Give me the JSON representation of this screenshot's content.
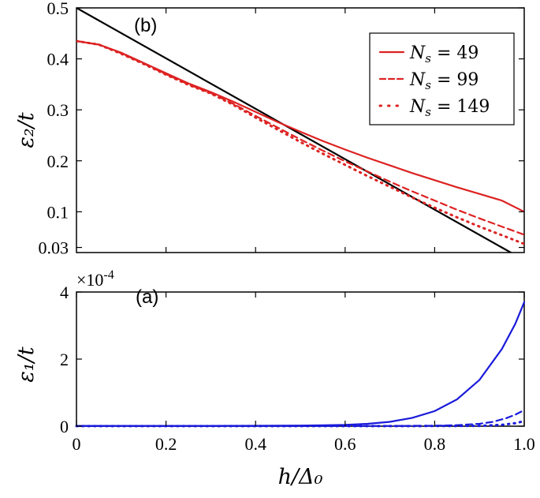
{
  "chart_data": [
    {
      "id": "panel-b",
      "type": "line",
      "panel_label": "(b)",
      "ylabel": "ε₂/t",
      "xlim": [
        0,
        1
      ],
      "ylim": [
        0.02,
        0.5
      ],
      "yticks": [
        {
          "value": 0.03,
          "label": "0.03"
        },
        {
          "value": 0.1,
          "label": "0.1"
        },
        {
          "value": 0.2,
          "label": "0.2"
        },
        {
          "value": 0.3,
          "label": "0.3"
        },
        {
          "value": 0.4,
          "label": "0.4"
        },
        {
          "value": 0.5,
          "label": "0.5"
        }
      ],
      "legend": {
        "placement": "top-right",
        "entries": [
          {
            "label": "N_s = 49",
            "style": "solid",
            "color": "#dd2222"
          },
          {
            "label": "N_s = 99",
            "style": "dashed",
            "color": "#dd2222"
          },
          {
            "label": "N_s = 149",
            "style": "dotted",
            "color": "#dd2222"
          }
        ]
      },
      "series": [
        {
          "style": "solid",
          "color": "#000000",
          "x": [
            0,
            0.97
          ],
          "y": [
            0.5,
            0.02
          ]
        },
        {
          "name": "N_s = 49",
          "style": "solid",
          "color": "#dd2222",
          "x": [
            0,
            0.05,
            0.1,
            0.15,
            0.2,
            0.25,
            0.3,
            0.35,
            0.4,
            0.45,
            0.5,
            0.55,
            0.6,
            0.65,
            0.7,
            0.75,
            0.8,
            0.85,
            0.9,
            0.95,
            1.0
          ],
          "y": [
            0.435,
            0.428,
            0.412,
            0.392,
            0.372,
            0.352,
            0.335,
            0.316,
            0.296,
            0.276,
            0.257,
            0.239,
            0.222,
            0.206,
            0.191,
            0.176,
            0.162,
            0.148,
            0.135,
            0.122,
            0.1
          ]
        },
        {
          "name": "N_s = 99",
          "style": "dashed",
          "color": "#dd2222",
          "x": [
            0,
            0.05,
            0.1,
            0.15,
            0.2,
            0.25,
            0.3,
            0.35,
            0.4,
            0.45,
            0.5,
            0.55,
            0.6,
            0.65,
            0.7,
            0.75,
            0.8,
            0.85,
            0.9,
            0.95,
            1.0
          ],
          "y": [
            0.435,
            0.428,
            0.411,
            0.391,
            0.37,
            0.35,
            0.333,
            0.312,
            0.288,
            0.265,
            0.242,
            0.22,
            0.199,
            0.179,
            0.159,
            0.14,
            0.122,
            0.104,
            0.087,
            0.071,
            0.055
          ]
        },
        {
          "name": "N_s = 149",
          "style": "dotted",
          "color": "#dd2222",
          "x": [
            0,
            0.05,
            0.1,
            0.15,
            0.2,
            0.25,
            0.3,
            0.35,
            0.4,
            0.45,
            0.5,
            0.55,
            0.6,
            0.65,
            0.7,
            0.75,
            0.8,
            0.85,
            0.9,
            0.95,
            1.0
          ],
          "y": [
            0.435,
            0.428,
            0.41,
            0.39,
            0.369,
            0.349,
            0.332,
            0.31,
            0.285,
            0.261,
            0.237,
            0.214,
            0.192,
            0.17,
            0.149,
            0.128,
            0.108,
            0.089,
            0.071,
            0.054,
            0.037
          ]
        }
      ]
    },
    {
      "id": "panel-a",
      "type": "line",
      "panel_label": "(a)",
      "ylabel": "ε₁/t",
      "xlabel": "h/Δ₀",
      "exponent_label": "×10",
      "exponent_power": "-4",
      "xlim": [
        0,
        1
      ],
      "ylim": [
        0,
        4
      ],
      "xticks": [
        {
          "value": 0,
          "label": "0"
        },
        {
          "value": 0.2,
          "label": "0.2"
        },
        {
          "value": 0.4,
          "label": "0.4"
        },
        {
          "value": 0.6,
          "label": "0.6"
        },
        {
          "value": 0.8,
          "label": "0.8"
        },
        {
          "value": 1.0,
          "label": "1.0"
        }
      ],
      "yticks": [
        {
          "value": 0,
          "label": "0"
        },
        {
          "value": 2,
          "label": "2"
        },
        {
          "value": 4,
          "label": "4"
        }
      ],
      "series": [
        {
          "name": "N_s = 49",
          "style": "solid",
          "color": "#1a1adc",
          "x": [
            0,
            0.1,
            0.2,
            0.3,
            0.4,
            0.5,
            0.55,
            0.6,
            0.65,
            0.7,
            0.75,
            0.8,
            0.85,
            0.9,
            0.95,
            0.98,
            1.0
          ],
          "y": [
            0.01,
            0.01,
            0.01,
            0.01,
            0.012,
            0.018,
            0.025,
            0.04,
            0.07,
            0.13,
            0.25,
            0.45,
            0.8,
            1.38,
            2.3,
            3.05,
            3.7
          ]
        },
        {
          "name": "N_s = 99",
          "style": "dashed",
          "color": "#1a1adc",
          "x": [
            0,
            0.2,
            0.4,
            0.6,
            0.7,
            0.8,
            0.85,
            0.9,
            0.93,
            0.96,
            0.98,
            1.0
          ],
          "y": [
            0.005,
            0.005,
            0.005,
            0.006,
            0.008,
            0.015,
            0.03,
            0.07,
            0.13,
            0.24,
            0.34,
            0.48
          ]
        },
        {
          "name": "N_s = 149",
          "style": "dotted",
          "color": "#1a1adc",
          "x": [
            0,
            0.2,
            0.4,
            0.6,
            0.8,
            0.9,
            0.95,
            0.98,
            1.0
          ],
          "y": [
            0.003,
            0.003,
            0.003,
            0.003,
            0.004,
            0.01,
            0.04,
            0.09,
            0.15
          ]
        }
      ]
    }
  ]
}
